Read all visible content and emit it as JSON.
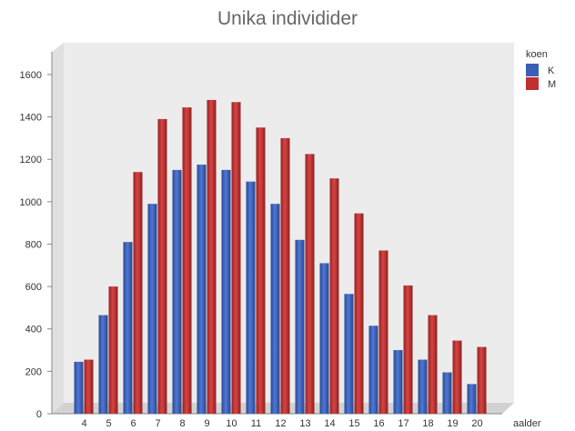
{
  "chart_data": {
    "type": "bar",
    "title": "Unika individider",
    "xlabel": "aalder",
    "ylabel": "",
    "ylim": [
      0,
      1750
    ],
    "y_ticks": [
      0,
      200,
      400,
      600,
      800,
      1000,
      1200,
      1400,
      1600
    ],
    "categories": [
      "4",
      "5",
      "6",
      "7",
      "8",
      "9",
      "10",
      "11",
      "12",
      "13",
      "14",
      "15",
      "16",
      "17",
      "18",
      "19",
      "20"
    ],
    "legend_title": "koen",
    "legend_position": "right",
    "grid": false,
    "series": [
      {
        "name": "K",
        "color": "#3a5fb5",
        "values": [
          245,
          465,
          810,
          990,
          1150,
          1175,
          1150,
          1095,
          990,
          820,
          710,
          565,
          415,
          300,
          255,
          195,
          140
        ]
      },
      {
        "name": "M",
        "color": "#c03030",
        "values": [
          255,
          600,
          1140,
          1390,
          1445,
          1480,
          1470,
          1350,
          1300,
          1225,
          1110,
          945,
          770,
          605,
          465,
          345,
          315
        ]
      }
    ]
  }
}
